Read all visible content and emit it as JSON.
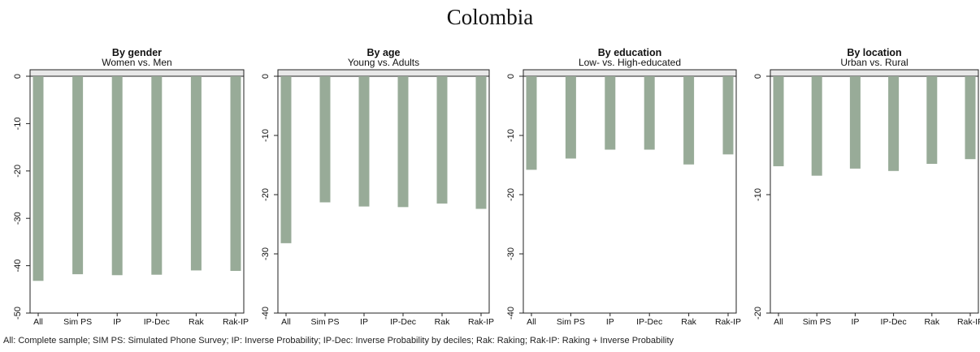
{
  "figure": {
    "title": "Colombia",
    "footnote": "All: Complete sample; SIM PS: Simulated Phone Survey; IP: Inverse Probability; IP-Dec: Inverse Probability by deciles; Rak: Raking; Rak-IP: Raking + Inverse Probability",
    "bar_color": "#98ab98",
    "header_fill": "#e8e8e8"
  },
  "chart_data": [
    {
      "type": "bar",
      "title": "By gender",
      "subtitle": "Women vs. Men",
      "categories": [
        "All",
        "Sim PS",
        "IP",
        "IP-Dec",
        "Rak",
        "Rak-IP"
      ],
      "values": [
        -43.2,
        -41.8,
        -42.0,
        -41.9,
        -41.0,
        -41.1
      ],
      "ylim": [
        -50,
        0
      ],
      "yticks": [
        0,
        -10,
        -20,
        -30,
        -40,
        -50
      ],
      "grid": false
    },
    {
      "type": "bar",
      "title": "By age",
      "subtitle": "Young vs. Adults",
      "categories": [
        "All",
        "Sim PS",
        "IP",
        "IP-Dec",
        "Rak",
        "Rak-IP"
      ],
      "values": [
        -28.2,
        -21.3,
        -22.0,
        -22.1,
        -21.5,
        -22.4
      ],
      "ylim": [
        -40,
        0
      ],
      "yticks": [
        0,
        -10,
        -20,
        -30,
        -40
      ],
      "grid": false
    },
    {
      "type": "bar",
      "title": "By education",
      "subtitle": "Low- vs. High-educated",
      "categories": [
        "All",
        "Sim PS",
        "IP",
        "IP-Dec",
        "Rak",
        "Rak-IP"
      ],
      "values": [
        -15.8,
        -13.9,
        -12.4,
        -12.4,
        -14.9,
        -13.2
      ],
      "ylim": [
        -40,
        0
      ],
      "yticks": [
        0,
        -10,
        -20,
        -30,
        -40
      ],
      "grid": false
    },
    {
      "type": "bar",
      "title": "By location",
      "subtitle": "Urban vs. Rural",
      "categories": [
        "All",
        "Sim PS",
        "IP",
        "IP-Dec",
        "Rak",
        "Rak-IP"
      ],
      "values": [
        -7.6,
        -8.4,
        -7.8,
        -8.0,
        -7.4,
        -7.0
      ],
      "ylim": [
        -20,
        0
      ],
      "yticks": [
        0,
        -10,
        -20
      ],
      "grid": false
    }
  ]
}
